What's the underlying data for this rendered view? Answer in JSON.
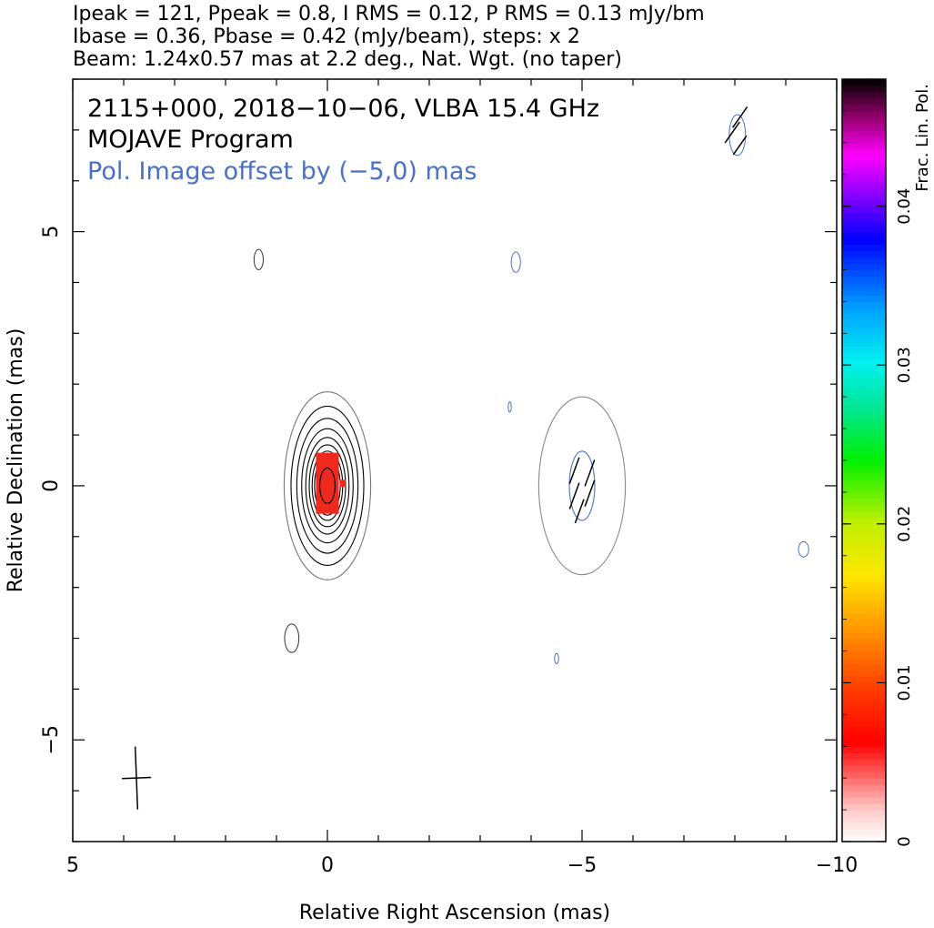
{
  "chart_data": {
    "type": "contour",
    "header_lines": [
      "Ipeak = 121, Ppeak = 0.8, I RMS = 0.12, P RMS = 0.13 mJy/bm",
      "Ibase = 0.36, Pbase = 0.42 (mJy/beam), steps: x 2",
      "Beam: 1.24x0.57 mas at 2.2 deg., Nat. Wgt. (no taper)"
    ],
    "annotations": [
      {
        "text": "2115+000, 2018−10−06, VLBA 15.4 GHz",
        "color": "#000000"
      },
      {
        "text": "MOJAVE Program",
        "color": "#000000"
      },
      {
        "text": "Pol. Image offset by (−5,0) mas",
        "color": "#4a72c4"
      }
    ],
    "xlabel": "Relative Right Ascension (mas)",
    "ylabel": "Relative Declination (mas)",
    "xlim": [
      5,
      -10
    ],
    "ylim": [
      -7,
      8
    ],
    "x_ticks": [
      5,
      0,
      -5,
      -10
    ],
    "x_tick_labels": [
      "5",
      "0",
      "−5",
      "−10"
    ],
    "y_ticks": [
      -5,
      0,
      5
    ],
    "y_tick_labels": [
      "−5",
      "0",
      "5"
    ],
    "x_minor_step": 1,
    "y_minor_step": 1,
    "colorbar": {
      "label": "Frac. Lin. Pol.",
      "range": [
        0,
        0.048
      ],
      "ticks": [
        0,
        0.01,
        0.02,
        0.03,
        0.04
      ],
      "tick_labels": [
        "0",
        "0.01",
        "0.02",
        "0.03",
        "0.04"
      ]
    },
    "stokes_i_contours": {
      "center": [
        0,
        0
      ],
      "n_levels": 11,
      "semi_axes_outer": [
        0.85,
        1.85
      ],
      "semi_axes_inner": [
        0.15,
        0.35
      ],
      "outliers": [
        [
          1.35,
          4.45,
          0.09,
          0.2
        ],
        [
          0.7,
          -3.0,
          0.14,
          0.28
        ]
      ]
    },
    "polarization_contours": {
      "center": [
        -5,
        0
      ],
      "ellipses": [
        [
          -5.0,
          0.0,
          0.85,
          1.75
        ],
        [
          -5.0,
          0.0,
          0.25,
          0.68
        ]
      ],
      "outliers": [
        [
          -3.7,
          4.4,
          0.09,
          0.2
        ],
        [
          -3.58,
          1.55,
          0.03,
          0.1
        ],
        [
          -4.5,
          -3.4,
          0.04,
          0.1
        ],
        [
          -9.35,
          -1.25,
          0.1,
          0.15
        ],
        [
          -8.05,
          6.9,
          0.16,
          0.4
        ]
      ]
    },
    "frac_pol_pixels": [
      {
        "x": 0.0,
        "y": 0.05,
        "w": 0.45,
        "h": 1.2,
        "value": 0.006
      },
      {
        "x": -0.3,
        "y": 0.05,
        "w": 0.12,
        "h": 0.14,
        "value": 0.006
      }
    ],
    "evpa_vectors": [
      [
        -4.85,
        0.3,
        0.55,
        70
      ],
      [
        -5.15,
        0.25,
        0.55,
        70
      ],
      [
        -4.85,
        -0.2,
        0.55,
        70
      ],
      [
        -5.15,
        -0.15,
        0.55,
        70
      ],
      [
        -4.95,
        -0.5,
        0.5,
        70
      ],
      [
        -7.95,
        6.95,
        0.5,
        55
      ],
      [
        -8.1,
        7.25,
        0.5,
        55
      ],
      [
        -8.1,
        6.7,
        0.45,
        55
      ]
    ],
    "beam": {
      "x": 3.75,
      "y": -5.75,
      "major": 1.24,
      "minor": 0.57,
      "pa_deg": 2.2
    }
  }
}
